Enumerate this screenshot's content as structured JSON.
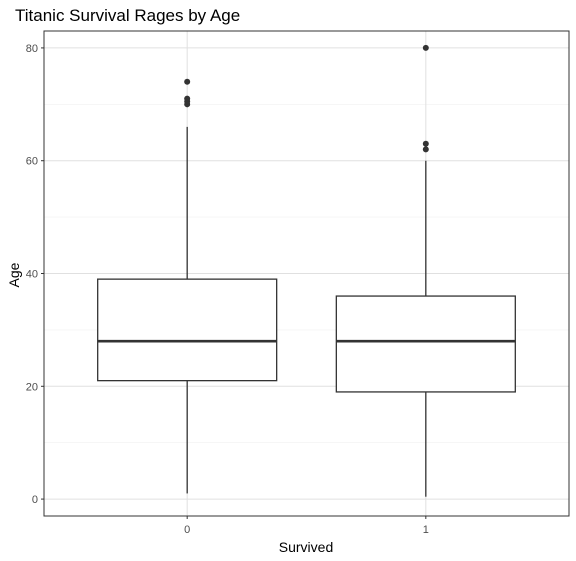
{
  "chart_data": {
    "type": "box",
    "title": "Titanic Survival Rages by Age",
    "xlabel": "Survived",
    "ylabel": "Age",
    "categories": [
      "0",
      "1"
    ],
    "ylim": [
      -3,
      83
    ],
    "yticks": [
      0,
      20,
      40,
      60,
      80
    ],
    "grid": true,
    "boxes": [
      {
        "category": "0",
        "whisker_low": 1,
        "q1": 21,
        "median": 28,
        "q3": 39,
        "whisker_high": 66,
        "outliers": [
          70,
          70.5,
          71,
          74
        ]
      },
      {
        "category": "1",
        "whisker_low": 0.42,
        "q1": 19,
        "median": 28,
        "q3": 36,
        "whisker_high": 60,
        "outliers": [
          62,
          63,
          80
        ]
      }
    ],
    "colors": {
      "box_stroke": "#333333",
      "grid_major": "#e0e0e0",
      "grid_minor": "#f0f0f0",
      "panel_border": "#333333"
    }
  }
}
